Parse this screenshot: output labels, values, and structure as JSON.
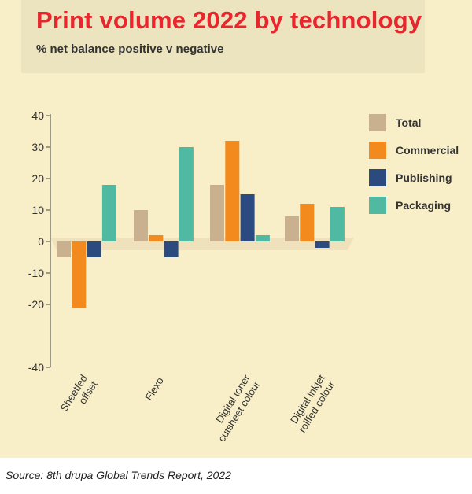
{
  "title": "Print volume 2022 by technology",
  "subtitle": "% net balance positive v negative",
  "source": "Source: 8th drupa Global Trends Report, 2022",
  "colors": {
    "background": "#f8efc8",
    "title_box": "#ece3bf",
    "title_text": "#e8262d",
    "floor": "#efe1bb",
    "series": [
      "#c9b08e",
      "#f28a1e",
      "#2a4a80",
      "#4fb9a2"
    ]
  },
  "chart_data": {
    "type": "bar",
    "title": "Print volume 2022 by technology",
    "subtitle": "% net balance positive v negative",
    "categories": [
      [
        "Sheetfed",
        "offset"
      ],
      [
        "Flexo"
      ],
      [
        "Digital toner",
        "cutsheet colour"
      ],
      [
        "Digital inkjet",
        "rollfed colour"
      ]
    ],
    "series": [
      {
        "name": "Total",
        "values": [
          -5,
          10,
          18,
          8
        ]
      },
      {
        "name": "Commercial",
        "values": [
          -21,
          2,
          32,
          12
        ]
      },
      {
        "name": "Publishing",
        "values": [
          -5,
          -5,
          15,
          -2
        ]
      },
      {
        "name": "Packaging",
        "values": [
          18,
          30,
          2,
          11
        ]
      }
    ],
    "ylim": [
      -40,
      40
    ],
    "yticks": [
      40,
      30,
      20,
      10,
      0,
      -10,
      -20,
      -40
    ],
    "legend_position": "right",
    "grid": false
  }
}
